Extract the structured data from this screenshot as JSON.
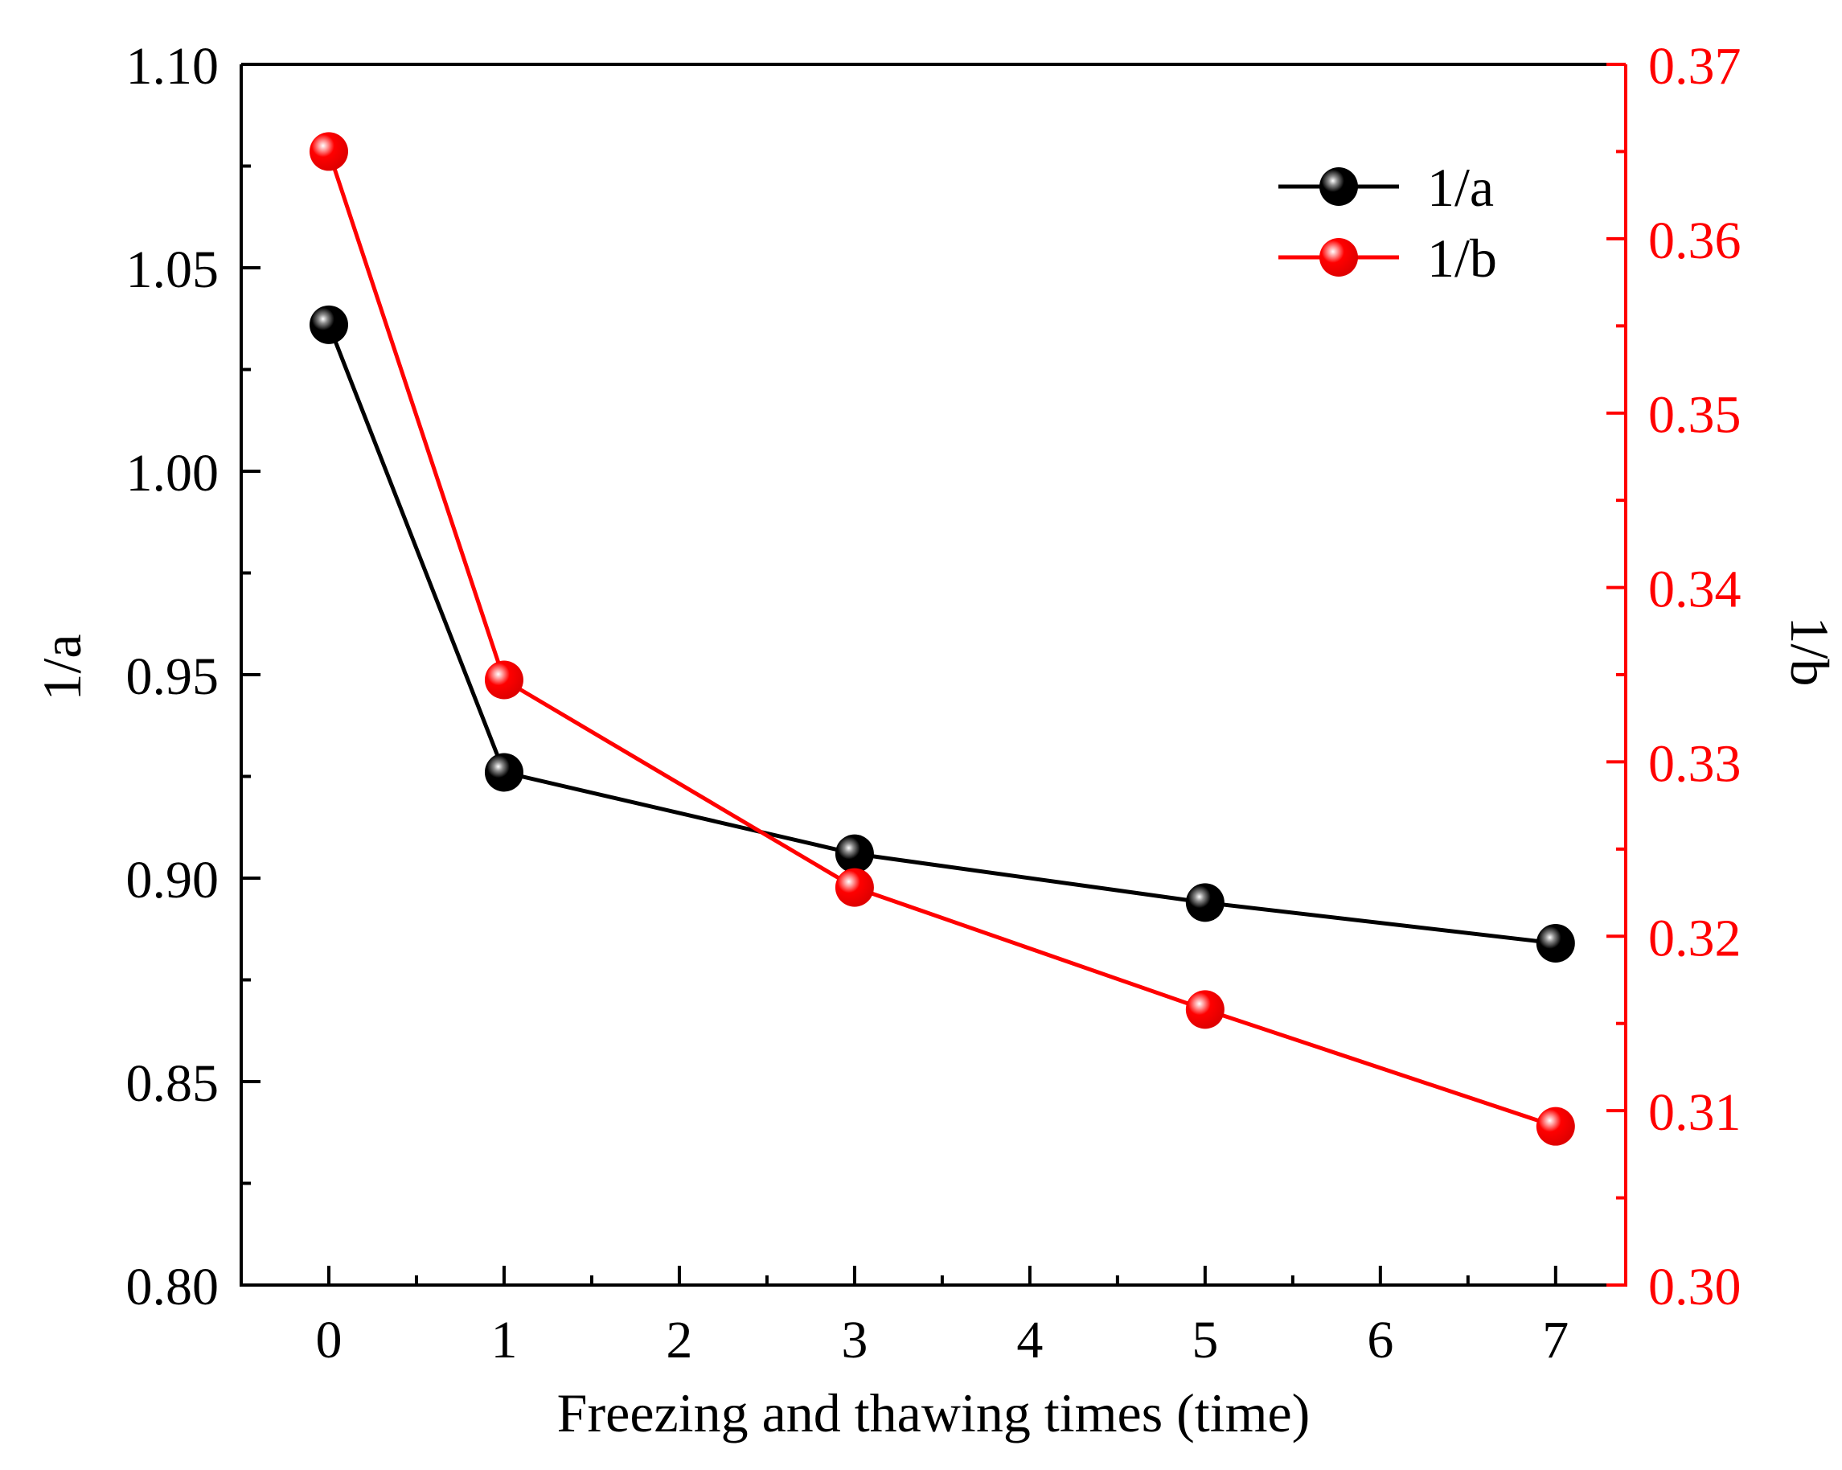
{
  "chart_data": {
    "type": "line",
    "x": [
      0,
      1,
      3,
      5,
      7
    ],
    "series": [
      {
        "name": "1/a",
        "axis": "left",
        "color": "#000000",
        "values": [
          1.036,
          0.926,
          0.906,
          0.894,
          0.884
        ]
      },
      {
        "name": "1/b",
        "axis": "right",
        "color": "#ff0000",
        "values": [
          0.365,
          0.3347,
          0.3228,
          0.3158,
          0.3091
        ]
      }
    ],
    "xlabel": "Freezing and thawing times (time)",
    "ylabel_left": "1/a",
    "ylabel_right": "1/b",
    "xlim": [
      -0.5,
      7.4
    ],
    "ylim_left": [
      0.8,
      1.1
    ],
    "ylim_right": [
      0.3,
      0.37
    ],
    "x_ticks": [
      "0",
      "1",
      "2",
      "3",
      "4",
      "5",
      "6",
      "7"
    ],
    "y_left_ticks": [
      "0.80",
      "0.85",
      "0.90",
      "0.95",
      "1.00",
      "1.05",
      "1.10"
    ],
    "y_right_ticks": [
      "0.30",
      "0.31",
      "0.32",
      "0.33",
      "0.34",
      "0.35",
      "0.36",
      "0.37"
    ],
    "legend": {
      "placement": "top-right",
      "entries": [
        "1/a",
        "1/b"
      ]
    },
    "grid": false
  }
}
